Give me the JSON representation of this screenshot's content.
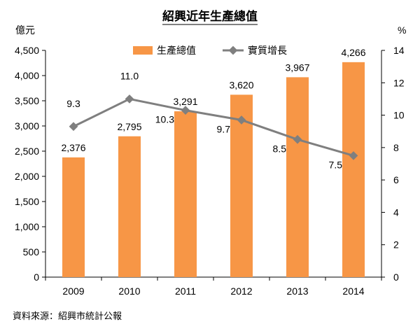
{
  "chart_data": {
    "type": "bar",
    "title": "紹興近年生產總值",
    "y_left_unit": "億元",
    "y_right_unit": "%",
    "categories": [
      "2009",
      "2010",
      "2011",
      "2012",
      "2013",
      "2014"
    ],
    "series": [
      {
        "name": "生產總值",
        "type": "bar",
        "axis": "left",
        "color": "#F79646",
        "values": [
          2376,
          2795,
          3291,
          3620,
          3967,
          4266
        ],
        "labels": [
          "2,376",
          "2,795",
          "3,291",
          "3,620",
          "3,967",
          "4,266"
        ]
      },
      {
        "name": "實質增長",
        "type": "line",
        "axis": "right",
        "color": "#7F7F7F",
        "values": [
          9.3,
          11.0,
          10.3,
          9.7,
          8.5,
          7.5
        ],
        "labels": [
          "9.3",
          "11.0",
          "10.3",
          "9.7",
          "8.5",
          "7.5"
        ]
      }
    ],
    "y_left": {
      "range": [
        0,
        4500
      ],
      "ticks": [
        0,
        500,
        1000,
        1500,
        2000,
        2500,
        3000,
        3500,
        4000,
        4500
      ],
      "tick_labels": [
        "0",
        "500",
        "1,000",
        "1,500",
        "2,000",
        "2,500",
        "3,000",
        "3,500",
        "4,000",
        "4,500"
      ]
    },
    "y_right": {
      "range": [
        0,
        14
      ],
      "ticks": [
        0,
        2,
        4,
        6,
        8,
        10,
        12,
        14
      ],
      "tick_labels": [
        "0",
        "2",
        "4",
        "6",
        "8",
        "10",
        "12",
        "14"
      ]
    },
    "grid": false,
    "legend_position": "top",
    "source": "資料來源：紹興市統計公報"
  }
}
